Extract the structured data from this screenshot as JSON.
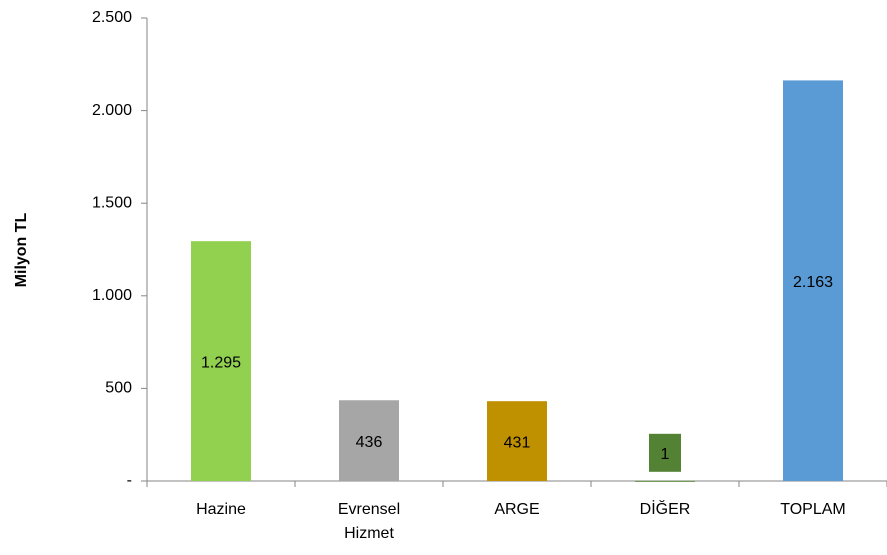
{
  "chart_data": {
    "type": "bar",
    "y_label": "Milyon TL",
    "categories": [
      "Hazine",
      "Evrensel Hizmet",
      "ARGE",
      "DİĞER",
      "TOPLAM"
    ],
    "values": [
      1295,
      436,
      431,
      1,
      2163
    ],
    "value_labels": [
      "1.295",
      "436",
      "431",
      "1",
      "2.163"
    ],
    "colors": [
      "#92d050",
      "#a6a6a6",
      "#bf9000",
      "#548235",
      "#5b9bd5"
    ],
    "ylim": [
      0,
      2500
    ],
    "yticks": [
      {
        "value": 0,
        "label": "-"
      },
      500,
      {
        "value": 1000,
        "label": "1.000"
      },
      {
        "value": 1500,
        "label": "1.500"
      },
      {
        "value": 2000,
        "label": "2.000"
      },
      {
        "value": 2500,
        "label": "2.500"
      }
    ]
  }
}
